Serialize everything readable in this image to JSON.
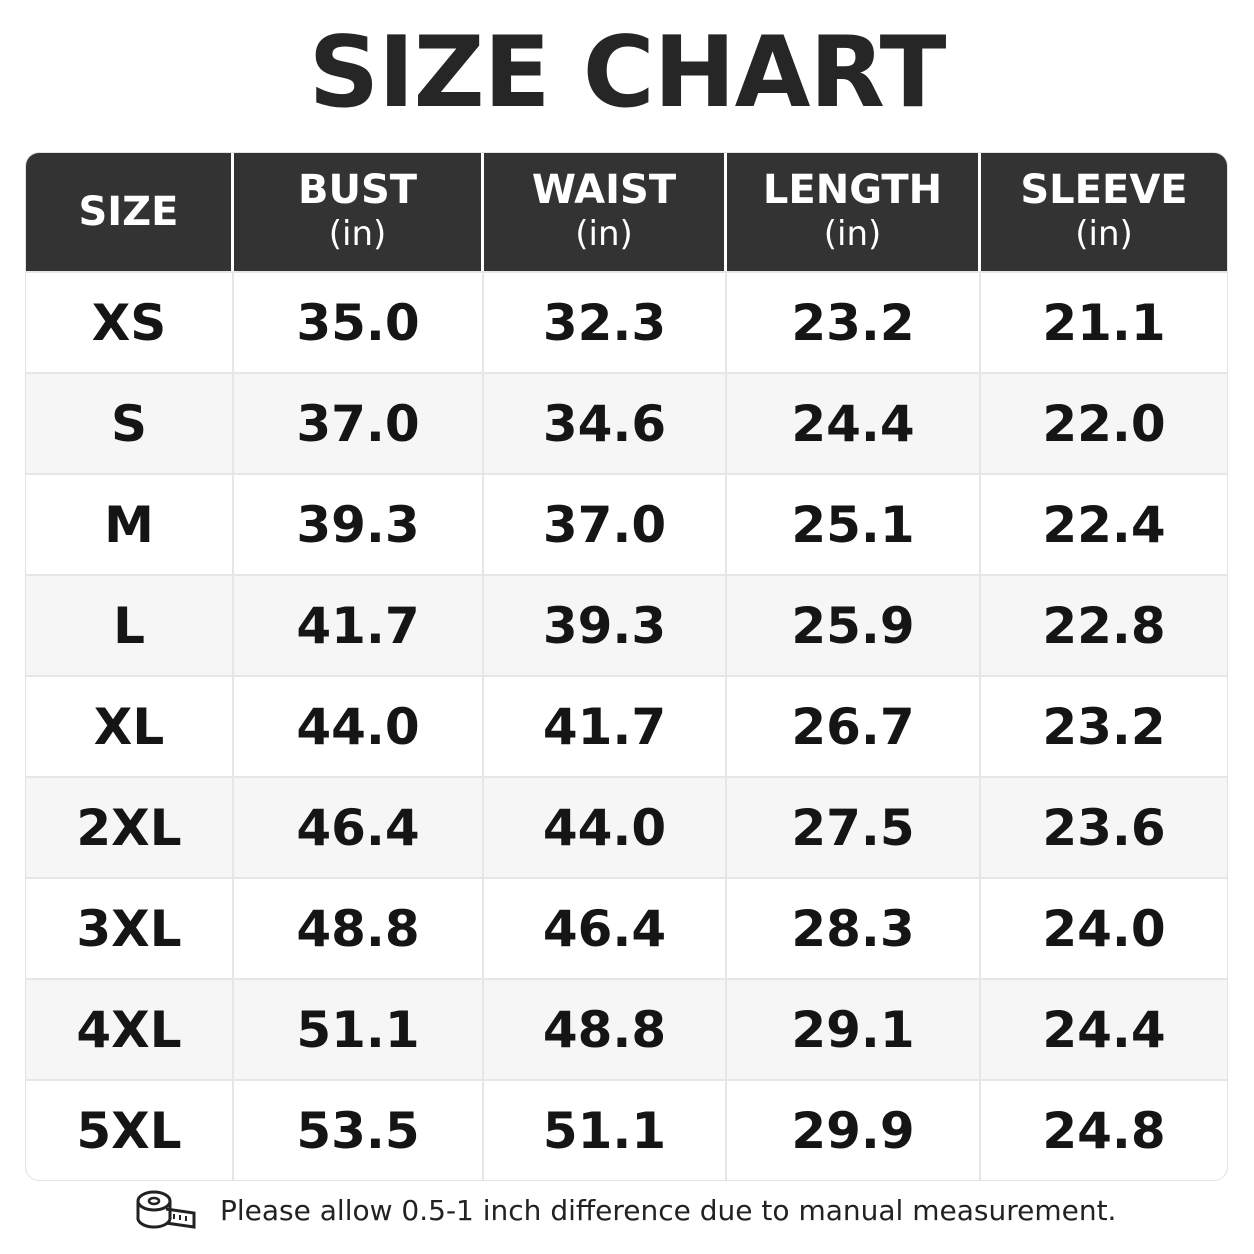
{
  "header": {
    "title": "SIZE CHART"
  },
  "table": {
    "columns": [
      {
        "name": "SIZE"
      },
      {
        "name": "BUST",
        "unit": "(in)"
      },
      {
        "name": "WAIST",
        "unit": "(in)"
      },
      {
        "name": "LENGTH",
        "unit": "(in)"
      },
      {
        "name": "SLEEVE",
        "unit": "(in)"
      }
    ],
    "rows": [
      [
        "XS",
        "35.0",
        "32.3",
        "23.2",
        "21.1"
      ],
      [
        "S",
        "37.0",
        "34.6",
        "24.4",
        "22.0"
      ],
      [
        "M",
        "39.3",
        "37.0",
        "25.1",
        "22.4"
      ],
      [
        "L",
        "41.7",
        "39.3",
        "25.9",
        "22.8"
      ],
      [
        "XL",
        "44.0",
        "41.7",
        "26.7",
        "23.2"
      ],
      [
        "2XL",
        "46.4",
        "44.0",
        "27.5",
        "23.6"
      ],
      [
        "3XL",
        "48.8",
        "46.4",
        "28.3",
        "24.0"
      ],
      [
        "4XL",
        "51.1",
        "48.8",
        "29.1",
        "24.4"
      ],
      [
        "5XL",
        "53.5",
        "51.1",
        "29.9",
        "24.8"
      ]
    ]
  },
  "footer": {
    "note": "Please allow 0.5-1 inch difference due to manual measurement."
  }
}
